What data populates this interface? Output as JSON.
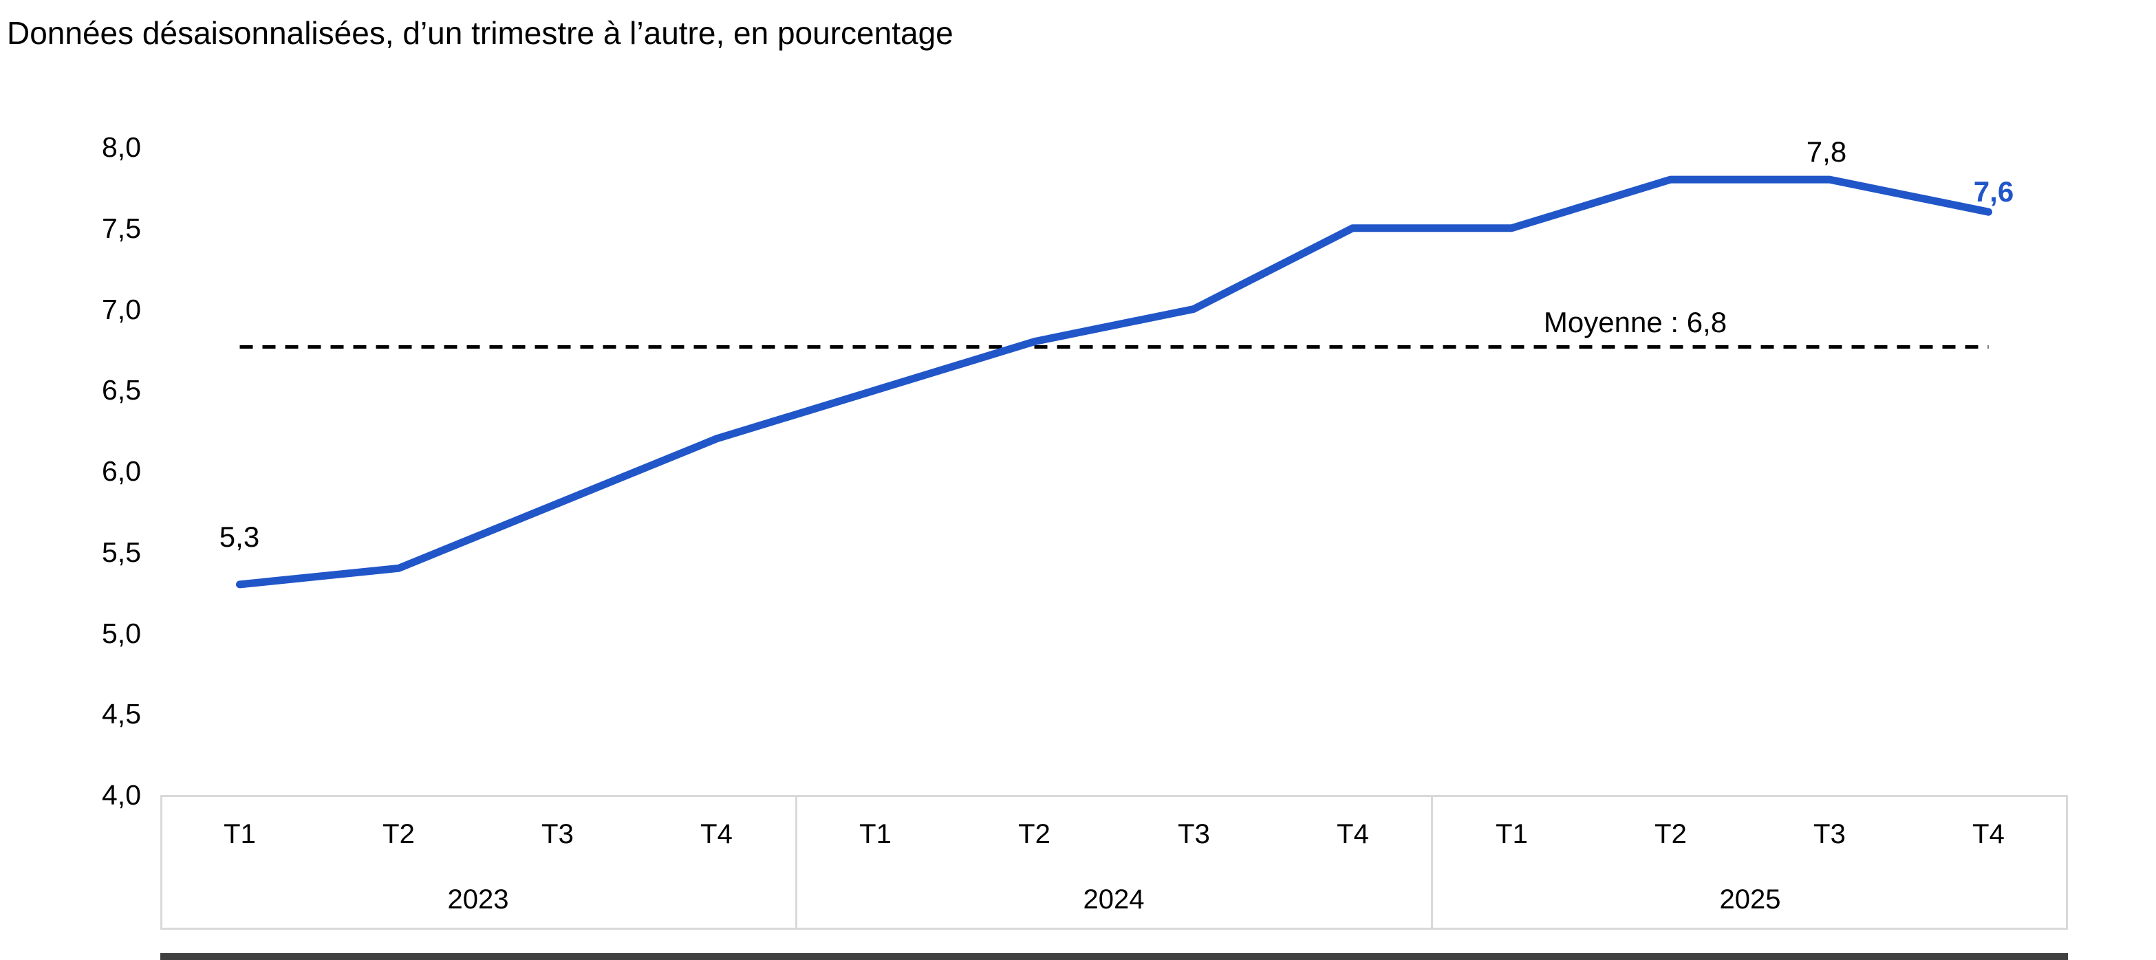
{
  "chart": {
    "title": "Données désaisonnalisées, d’un trimestre à l’autre, en pourcentage"
  },
  "chart_data": {
    "type": "line",
    "title": "Données désaisonnalisées, d’un trimestre à l’autre, en pourcentage",
    "categories": [
      "T1",
      "T2",
      "T3",
      "T4",
      "T1",
      "T2",
      "T3",
      "T4",
      "T1",
      "T2",
      "T3",
      "T4"
    ],
    "year_groups": [
      "2023",
      "2024",
      "2025"
    ],
    "values": [
      5.3,
      5.4,
      5.8,
      6.2,
      6.5,
      6.8,
      7.0,
      7.5,
      7.5,
      7.8,
      7.8,
      7.6
    ],
    "ylim": [
      4.0,
      8.0
    ],
    "ytick_step": 0.5,
    "yticks": [
      "8,0",
      "7,5",
      "7,0",
      "6,5",
      "6,0",
      "5,5",
      "5,0",
      "4,5",
      "4,0"
    ],
    "point_labels": [
      {
        "point_index": 0,
        "text": "5,3"
      },
      {
        "point_index": 10,
        "text": "7,8"
      },
      {
        "point_index": 11,
        "text": "7,6"
      }
    ],
    "mean_label": "Moyenne : 6,8",
    "legend": "none",
    "grid": "off",
    "line_color": "#2156C8",
    "mean_line_color": "#000000",
    "axis_border_color": "#D9D9D9",
    "label_color": "#000000",
    "last_point_label_color": "#2156C8"
  }
}
